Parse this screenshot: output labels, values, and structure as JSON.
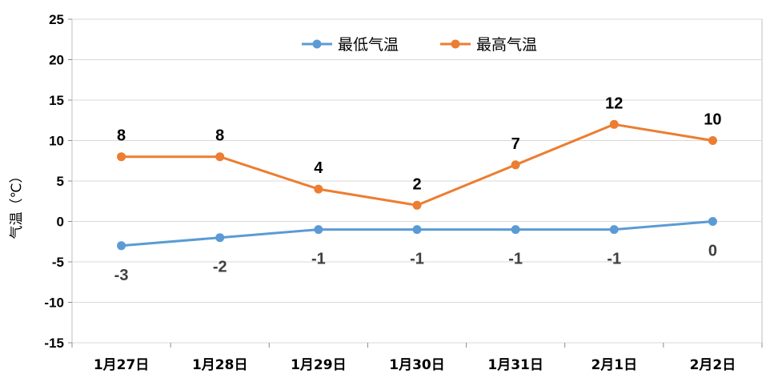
{
  "chart_data": {
    "type": "line",
    "ylabel": "气温（℃）",
    "ylim": [
      -15,
      25
    ],
    "yticks": [
      -15,
      -10,
      -5,
      0,
      5,
      10,
      15,
      20,
      25
    ],
    "grid": true,
    "legend_position": "top-center",
    "categories": [
      "1月27日",
      "1月28日",
      "1月29日",
      "1月30日",
      "1月31日",
      "2月1日",
      "2月2日"
    ],
    "series": [
      {
        "name": "最低气温",
        "color": "#5b9bd5",
        "label_color": "#404040",
        "label_position": "below",
        "values": [
          -3,
          -2,
          -1,
          -1,
          -1,
          -1,
          0
        ]
      },
      {
        "name": "最高气温",
        "color": "#ed7d31",
        "label_color": "#000000",
        "label_position": "above",
        "values": [
          8,
          8,
          4,
          2,
          7,
          12,
          10
        ]
      }
    ]
  }
}
